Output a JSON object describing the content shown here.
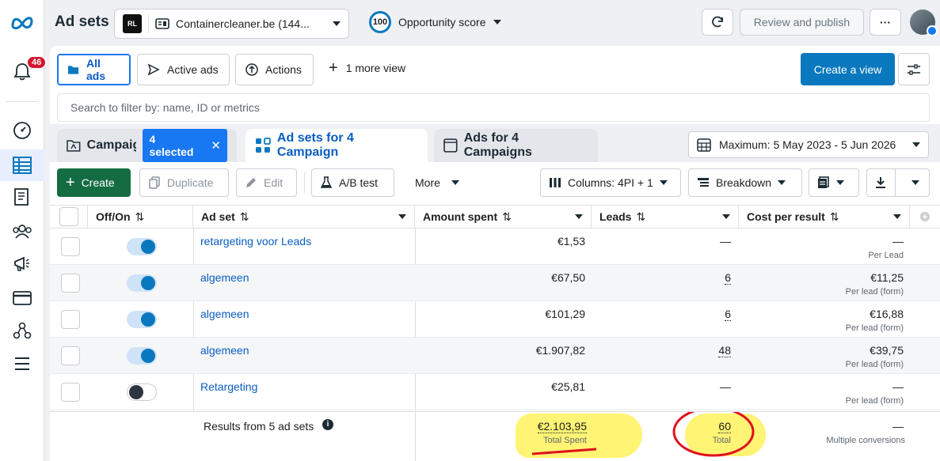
{
  "rail": {
    "notification_count": "46"
  },
  "topbar": {
    "title": "Ad sets",
    "account_logo": "RL",
    "account_name": "Containercleaner.be (144...",
    "opportunity_score": "100",
    "opportunity_label": "Opportunity score",
    "review_publish": "Review and publish",
    "more_dots": "···"
  },
  "views": {
    "all_ads": "All ads",
    "active_ads": "Active ads",
    "actions": "Actions",
    "more_view": "1 more view",
    "create_view": "Create a view"
  },
  "search": {
    "placeholder": "Search to filter by: name, ID or metrics"
  },
  "tabs": {
    "campaigns": "Campaig",
    "selected": "4 selected",
    "adsets": "Ad sets for 4 Campaign",
    "ads": "Ads for 4 Campaigns"
  },
  "date_range": "Maximum: 5 May 2023 - 5 Jun 2026",
  "toolbar": {
    "create": "Create",
    "duplicate": "Duplicate",
    "edit": "Edit",
    "ab_test": "A/B test",
    "more": "More",
    "columns": "Columns: 4PI + 1",
    "breakdown": "Breakdown"
  },
  "columns": {
    "onoff": "Off/On",
    "adset": "Ad set",
    "amount": "Amount spent",
    "leads": "Leads",
    "cpr": "Cost per result"
  },
  "rows": [
    {
      "name": "retargeting voor Leads",
      "on": true,
      "amount": "€1,53",
      "leads": "—",
      "cpr": "—",
      "cpr_sub": "Per Lead"
    },
    {
      "name": "algemeen",
      "on": true,
      "amount": "€67,50",
      "leads": "6",
      "cpr": "€11,25",
      "cpr_sub": "Per lead (form)"
    },
    {
      "name": "algemeen",
      "on": true,
      "amount": "€101,29",
      "leads": "6",
      "cpr": "€16,88",
      "cpr_sub": "Per lead (form)"
    },
    {
      "name": "algemeen",
      "on": true,
      "amount": "€1.907,82",
      "leads": "48",
      "cpr": "€39,75",
      "cpr_sub": "Per lead (form)"
    },
    {
      "name": "Retargeting",
      "on": false,
      "amount": "€25,81",
      "leads": "—",
      "cpr": "—",
      "cpr_sub": "Per lead (form)"
    }
  ],
  "totals": {
    "label": "Results from 5 ad sets",
    "amount": "€2.103,95",
    "amount_sub": "Total Spent",
    "leads": "60",
    "leads_sub": "Total",
    "cpr": "—",
    "cpr_sub": "Multiple conversions"
  },
  "colors": {
    "accent": "#0a78be",
    "link": "#0a5dc2",
    "create_green": "#146c43",
    "highlight": "#fff046",
    "annotation_red": "#e0101c"
  }
}
